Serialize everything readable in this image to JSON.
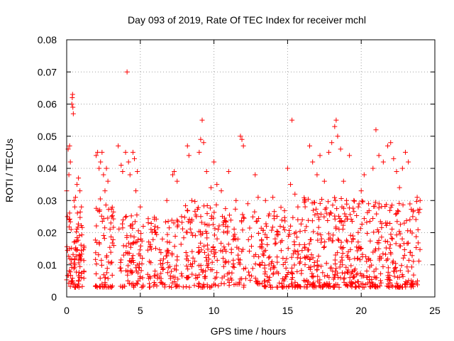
{
  "chart_data": {
    "type": "scatter",
    "title": "Day 093 of 2019, Rate Of TEC Index for receiver mchl",
    "xlabel": "GPS time / hours",
    "ylabel": "ROTI / TECUs",
    "xlim": [
      0,
      25
    ],
    "ylim": [
      0,
      0.08
    ],
    "xticks": [
      0,
      5,
      10,
      15,
      20,
      25
    ],
    "yticks": [
      0,
      0.01,
      0.02,
      0.03,
      0.04,
      0.05,
      0.06,
      0.07,
      0.08
    ],
    "ytick_labels": [
      "0",
      "0.01",
      "0.02",
      "0.03",
      "0.04",
      "0.05",
      "0.06",
      "0.07",
      "0.08"
    ],
    "grid": true,
    "marker": "+",
    "color": "#ff0000",
    "series": [
      {
        "points": [
          [
            0.0,
            0.033
          ],
          [
            0.05,
            0.025
          ],
          [
            0.1,
            0.046
          ],
          [
            0.15,
            0.038
          ],
          [
            0.2,
            0.047
          ],
          [
            0.25,
            0.042
          ],
          [
            0.3,
            0.021
          ],
          [
            0.35,
            0.06
          ],
          [
            0.38,
            0.062
          ],
          [
            0.4,
            0.063
          ],
          [
            0.42,
            0.059
          ],
          [
            0.45,
            0.057
          ],
          [
            0.5,
            0.03
          ],
          [
            0.55,
            0.028
          ],
          [
            0.6,
            0.031
          ],
          [
            0.7,
            0.035
          ],
          [
            0.8,
            0.037
          ],
          [
            0.9,
            0.033
          ],
          [
            1.0,
            0.028
          ],
          [
            0.2,
            0.015
          ],
          [
            0.4,
            0.005
          ],
          [
            0.6,
            0.003
          ],
          [
            0.8,
            0.004
          ],
          [
            1.0,
            0.006
          ],
          [
            2.0,
            0.044
          ],
          [
            2.1,
            0.045
          ],
          [
            2.2,
            0.04
          ],
          [
            2.3,
            0.042
          ],
          [
            2.4,
            0.045
          ],
          [
            2.5,
            0.038
          ],
          [
            2.6,
            0.033
          ],
          [
            2.7,
            0.04
          ],
          [
            2.8,
            0.036
          ],
          [
            3.0,
            0.023
          ],
          [
            3.2,
            0.016
          ],
          [
            2.4,
            0.004
          ],
          [
            2.6,
            0.006
          ],
          [
            3.5,
            0.047
          ],
          [
            3.7,
            0.041
          ],
          [
            3.8,
            0.039
          ],
          [
            4.0,
            0.045
          ],
          [
            4.1,
            0.07
          ],
          [
            4.2,
            0.042
          ],
          [
            4.3,
            0.038
          ],
          [
            4.5,
            0.045
          ],
          [
            4.6,
            0.043
          ],
          [
            4.7,
            0.033
          ],
          [
            4.8,
            0.039
          ],
          [
            5.0,
            0.028
          ],
          [
            5.2,
            0.022
          ],
          [
            4.8,
            0.004
          ],
          [
            5.1,
            0.003
          ],
          [
            6.0,
            0.022
          ],
          [
            6.5,
            0.018
          ],
          [
            6.8,
            0.03
          ],
          [
            7.2,
            0.038
          ],
          [
            7.3,
            0.039
          ],
          [
            7.5,
            0.036
          ],
          [
            7.8,
            0.025
          ],
          [
            6.5,
            0.004
          ],
          [
            8.2,
            0.047
          ],
          [
            8.3,
            0.044
          ],
          [
            8.5,
            0.03
          ],
          [
            8.8,
            0.025
          ],
          [
            9.0,
            0.045
          ],
          [
            9.1,
            0.049
          ],
          [
            9.2,
            0.055
          ],
          [
            9.3,
            0.048
          ],
          [
            9.5,
            0.039
          ],
          [
            9.8,
            0.034
          ],
          [
            10.0,
            0.042
          ],
          [
            10.2,
            0.035
          ],
          [
            10.5,
            0.033
          ],
          [
            9.0,
            0.004
          ],
          [
            10.0,
            0.004
          ],
          [
            11.0,
            0.039
          ],
          [
            11.5,
            0.03
          ],
          [
            11.8,
            0.05
          ],
          [
            11.9,
            0.049
          ],
          [
            12.0,
            0.047
          ],
          [
            12.3,
            0.029
          ],
          [
            12.8,
            0.038
          ],
          [
            13.0,
            0.031
          ],
          [
            13.5,
            0.03
          ],
          [
            14.0,
            0.031
          ],
          [
            14.5,
            0.022
          ],
          [
            11.5,
            0.004
          ],
          [
            13.0,
            0.004
          ],
          [
            15.0,
            0.04
          ],
          [
            15.2,
            0.035
          ],
          [
            15.3,
            0.055
          ],
          [
            15.5,
            0.032
          ],
          [
            15.7,
            0.028
          ],
          [
            16.0,
            0.024
          ],
          [
            15.5,
            0.003
          ],
          [
            16.5,
            0.047
          ],
          [
            16.7,
            0.042
          ],
          [
            17.0,
            0.038
          ],
          [
            17.2,
            0.044
          ],
          [
            17.5,
            0.036
          ],
          [
            17.8,
            0.045
          ],
          [
            18.0,
            0.048
          ],
          [
            18.2,
            0.053
          ],
          [
            18.3,
            0.055
          ],
          [
            18.4,
            0.05
          ],
          [
            18.6,
            0.046
          ],
          [
            18.8,
            0.036
          ],
          [
            19.0,
            0.03
          ],
          [
            19.2,
            0.044
          ],
          [
            19.5,
            0.03
          ],
          [
            19.8,
            0.028
          ],
          [
            17.5,
            0.004
          ],
          [
            18.5,
            0.003
          ],
          [
            20.0,
            0.033
          ],
          [
            20.2,
            0.038
          ],
          [
            20.5,
            0.029
          ],
          [
            20.8,
            0.04
          ],
          [
            21.0,
            0.052
          ],
          [
            21.2,
            0.044
          ],
          [
            21.5,
            0.042
          ],
          [
            21.8,
            0.047
          ],
          [
            22.0,
            0.048
          ],
          [
            22.2,
            0.043
          ],
          [
            22.4,
            0.039
          ],
          [
            22.6,
            0.034
          ],
          [
            22.8,
            0.04
          ],
          [
            23.0,
            0.045
          ],
          [
            23.2,
            0.042
          ],
          [
            23.5,
            0.025
          ],
          [
            23.8,
            0.031
          ],
          [
            24.0,
            0.03
          ],
          [
            21.0,
            0.003
          ],
          [
            23.0,
            0.004
          ]
        ]
      }
    ],
    "dense_segments": [
      [
        0.0,
        1.2,
        0.012,
        0.012,
        90
      ],
      [
        1.9,
        3.2,
        0.014,
        0.014,
        70
      ],
      [
        3.5,
        5.2,
        0.011,
        0.012,
        90
      ],
      [
        5.5,
        8.0,
        0.01,
        0.012,
        110
      ],
      [
        8.0,
        11.0,
        0.013,
        0.014,
        160
      ],
      [
        11.0,
        14.8,
        0.012,
        0.013,
        170
      ],
      [
        14.8,
        16.0,
        0.011,
        0.012,
        60
      ],
      [
        16.1,
        20.0,
        0.012,
        0.016,
        260
      ],
      [
        20.0,
        24.0,
        0.011,
        0.016,
        220
      ]
    ]
  }
}
